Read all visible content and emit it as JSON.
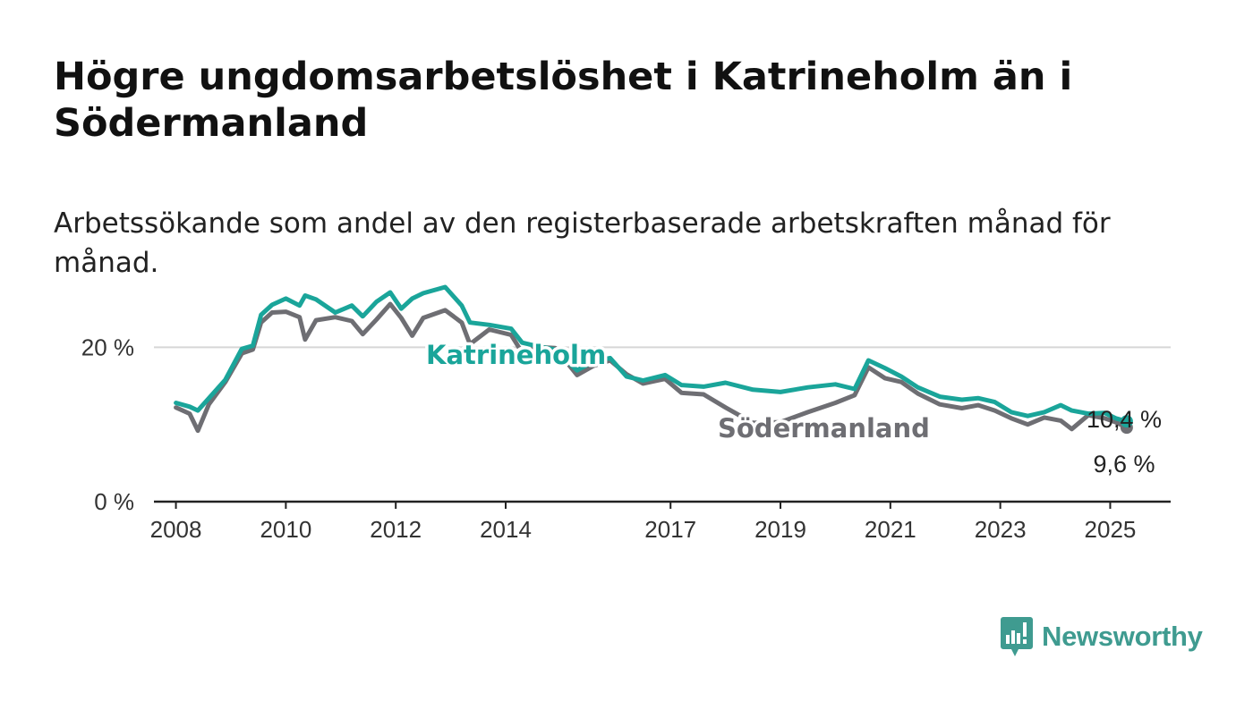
{
  "title": "Högre ungdomsarbetslöshet i Katrineholm än i Södermanland",
  "subtitle": "Arbetssökande som andel av den registerbaserade arbetskraften månad för månad.",
  "logo": {
    "name": "Newsworthy",
    "icon": "bar-chart-speech-bubble-icon"
  },
  "chart_data": {
    "type": "line",
    "grid": "horizontal",
    "ylim": [
      0,
      30
    ],
    "xlim": [
      2007.6,
      2026.1
    ],
    "y_ticks": [
      {
        "value": 0,
        "label": "0 %"
      },
      {
        "value": 20,
        "label": "20 %"
      }
    ],
    "x_ticks": [
      {
        "value": 2008,
        "label": "2008"
      },
      {
        "value": 2010,
        "label": "2010"
      },
      {
        "value": 2012,
        "label": "2012"
      },
      {
        "value": 2014,
        "label": "2014"
      },
      {
        "value": 2017,
        "label": "2017"
      },
      {
        "value": 2019,
        "label": "2019"
      },
      {
        "value": 2021,
        "label": "2021"
      },
      {
        "value": 2023,
        "label": "2023"
      },
      {
        "value": 2025,
        "label": "2025"
      }
    ],
    "x": [
      2008.0,
      2008.25,
      2008.4,
      2008.6,
      2008.9,
      2009.2,
      2009.4,
      2009.55,
      2009.75,
      2010.0,
      2010.25,
      2010.35,
      2010.55,
      2010.9,
      2011.2,
      2011.4,
      2011.65,
      2011.9,
      2012.1,
      2012.3,
      2012.5,
      2012.9,
      2013.2,
      2013.35,
      2013.7,
      2014.1,
      2014.3,
      2014.6,
      2014.9,
      2015.3,
      2015.6,
      2015.9,
      2016.2,
      2016.5,
      2016.9,
      2017.2,
      2017.6,
      2018.0,
      2018.5,
      2019.0,
      2019.5,
      2020.0,
      2020.35,
      2020.6,
      2020.9,
      2021.2,
      2021.5,
      2021.9,
      2022.3,
      2022.6,
      2022.9,
      2023.2,
      2023.5,
      2023.8,
      2024.1,
      2024.3,
      2024.6,
      2024.9,
      2025.1,
      2025.3
    ],
    "series": [
      {
        "name": "Katrineholm",
        "color": "#1aa59a",
        "values": [
          12.8,
          12.3,
          11.8,
          13.4,
          15.8,
          19.8,
          20.2,
          24.2,
          25.5,
          26.3,
          25.4,
          26.7,
          26.2,
          24.5,
          25.4,
          24.0,
          25.9,
          27.1,
          25.0,
          26.3,
          27.0,
          27.8,
          25.4,
          23.2,
          22.9,
          22.4,
          20.6,
          20.1,
          19.7,
          17.0,
          18.2,
          18.6,
          16.2,
          15.7,
          16.4,
          15.1,
          14.9,
          15.4,
          14.5,
          14.2,
          14.8,
          15.2,
          14.6,
          18.3,
          17.3,
          16.2,
          14.8,
          13.6,
          13.2,
          13.4,
          12.9,
          11.6,
          11.1,
          11.6,
          12.5,
          11.8,
          11.4,
          11.5,
          10.8,
          10.4
        ]
      },
      {
        "name": "Södermanland",
        "color": "#6e6e73",
        "values": [
          12.2,
          11.4,
          9.2,
          12.6,
          15.5,
          19.2,
          19.7,
          23.2,
          24.5,
          24.6,
          23.9,
          21.0,
          23.5,
          23.9,
          23.4,
          21.7,
          23.6,
          25.6,
          23.8,
          21.5,
          23.8,
          24.8,
          23.2,
          20.4,
          22.3,
          21.6,
          19.3,
          20.0,
          19.9,
          16.4,
          17.6,
          18.3,
          16.5,
          15.3,
          15.9,
          14.1,
          13.9,
          12.2,
          10.2,
          10.3,
          11.6,
          12.8,
          13.8,
          17.4,
          16.0,
          15.5,
          14.0,
          12.6,
          12.1,
          12.5,
          11.8,
          10.8,
          10.0,
          10.9,
          10.5,
          9.4,
          11.2,
          10.8,
          10.3,
          9.6
        ]
      }
    ],
    "series_labels": [
      "Katrineholm",
      "Södermanland"
    ],
    "end_labels": [
      "10,4 %",
      "9,6 %"
    ]
  }
}
